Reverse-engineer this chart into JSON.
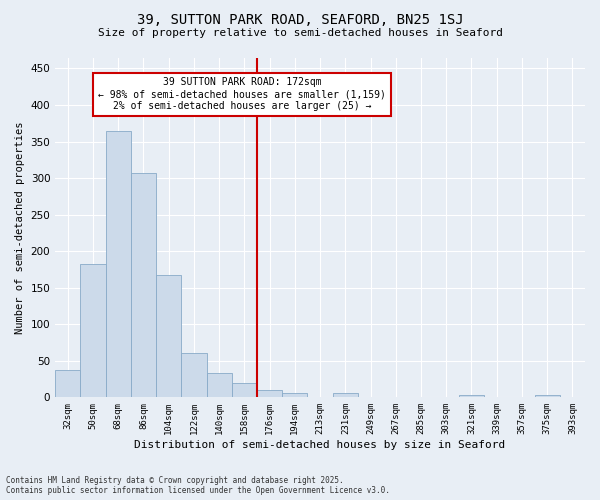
{
  "title": "39, SUTTON PARK ROAD, SEAFORD, BN25 1SJ",
  "subtitle": "Size of property relative to semi-detached houses in Seaford",
  "xlabel": "Distribution of semi-detached houses by size in Seaford",
  "ylabel": "Number of semi-detached properties",
  "bar_color": "#ccdaea",
  "bar_edge_color": "#88aac8",
  "background_color": "#e8eef5",
  "grid_color": "#ffffff",
  "categories": [
    "32sqm",
    "50sqm",
    "68sqm",
    "86sqm",
    "104sqm",
    "122sqm",
    "140sqm",
    "158sqm",
    "176sqm",
    "194sqm",
    "213sqm",
    "231sqm",
    "249sqm",
    "267sqm",
    "285sqm",
    "303sqm",
    "321sqm",
    "339sqm",
    "357sqm",
    "375sqm",
    "393sqm"
  ],
  "values": [
    37,
    183,
    365,
    307,
    168,
    60,
    33,
    19,
    10,
    6,
    0,
    6,
    0,
    0,
    0,
    0,
    3,
    0,
    0,
    3,
    0
  ],
  "vline_index": 8,
  "vline_color": "#cc0000",
  "annotation_text": "39 SUTTON PARK ROAD: 172sqm\n← 98% of semi-detached houses are smaller (1,159)\n2% of semi-detached houses are larger (25) →",
  "annotation_box_color": "#ffffff",
  "annotation_box_edge": "#cc0000",
  "ylim": [
    0,
    465
  ],
  "yticks": [
    0,
    50,
    100,
    150,
    200,
    250,
    300,
    350,
    400,
    450
  ],
  "footnote": "Contains HM Land Registry data © Crown copyright and database right 2025.\nContains public sector information licensed under the Open Government Licence v3.0."
}
